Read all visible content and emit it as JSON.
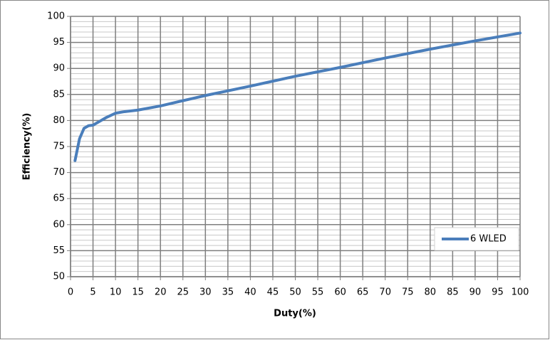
{
  "chart_data": {
    "type": "line",
    "x_label": "Duty(%)",
    "y_label": "Efficiency(%)",
    "series": [
      {
        "name": "6 WLED",
        "color": "#4a7ebb",
        "x": [
          1,
          2,
          3,
          4,
          5,
          6,
          8,
          10,
          12,
          15,
          20,
          30,
          40,
          50,
          60,
          70,
          80,
          90,
          100
        ],
        "values": [
          72.3,
          76.5,
          78.5,
          79,
          79.1,
          79.6,
          80.6,
          81.4,
          81.7,
          82,
          82.8,
          84.8,
          86.6,
          88.5,
          90.2,
          92,
          93.7,
          95.3,
          96.8
        ]
      }
    ],
    "xlim": [
      0,
      100
    ],
    "xticks": [
      0,
      5,
      10,
      15,
      20,
      25,
      30,
      35,
      40,
      45,
      50,
      55,
      60,
      65,
      70,
      75,
      80,
      85,
      90,
      95,
      100
    ],
    "ylim": [
      50,
      100
    ],
    "yticks": [
      50,
      55,
      60,
      65,
      70,
      75,
      80,
      85,
      90,
      95,
      100
    ],
    "y_minor_step": 1,
    "grid": true,
    "legend": "right"
  }
}
